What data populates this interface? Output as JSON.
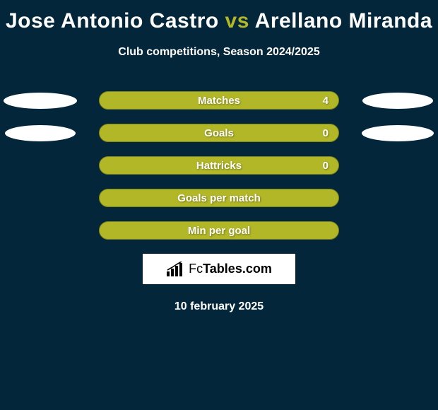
{
  "title": {
    "player1": "Jose Antonio Castro",
    "vs": "vs",
    "player2": "Arellano Miranda"
  },
  "subtitle": "Club competitions, Season 2024/2025",
  "colors": {
    "background": "#03263a",
    "accent": "#b1b727",
    "bar_border": "#808517",
    "text": "#ffffff",
    "brand_bg": "#ffffff",
    "brand_text": "#000000"
  },
  "rows": [
    {
      "label": "Matches",
      "value": "4",
      "left_w": 104,
      "right_w": 100
    },
    {
      "label": "Goals",
      "value": "0",
      "left_w": 100,
      "right_w": 102
    },
    {
      "label": "Hattricks",
      "value": "0",
      "left_w": null,
      "right_w": null
    },
    {
      "label": "Goals per match",
      "value": "",
      "left_w": null,
      "right_w": null
    },
    {
      "label": "Min per goal",
      "value": "",
      "left_w": null,
      "right_w": null
    }
  ],
  "brand": {
    "prefix": "Fc",
    "suffix": "Tables.com"
  },
  "date": "10 february 2025"
}
